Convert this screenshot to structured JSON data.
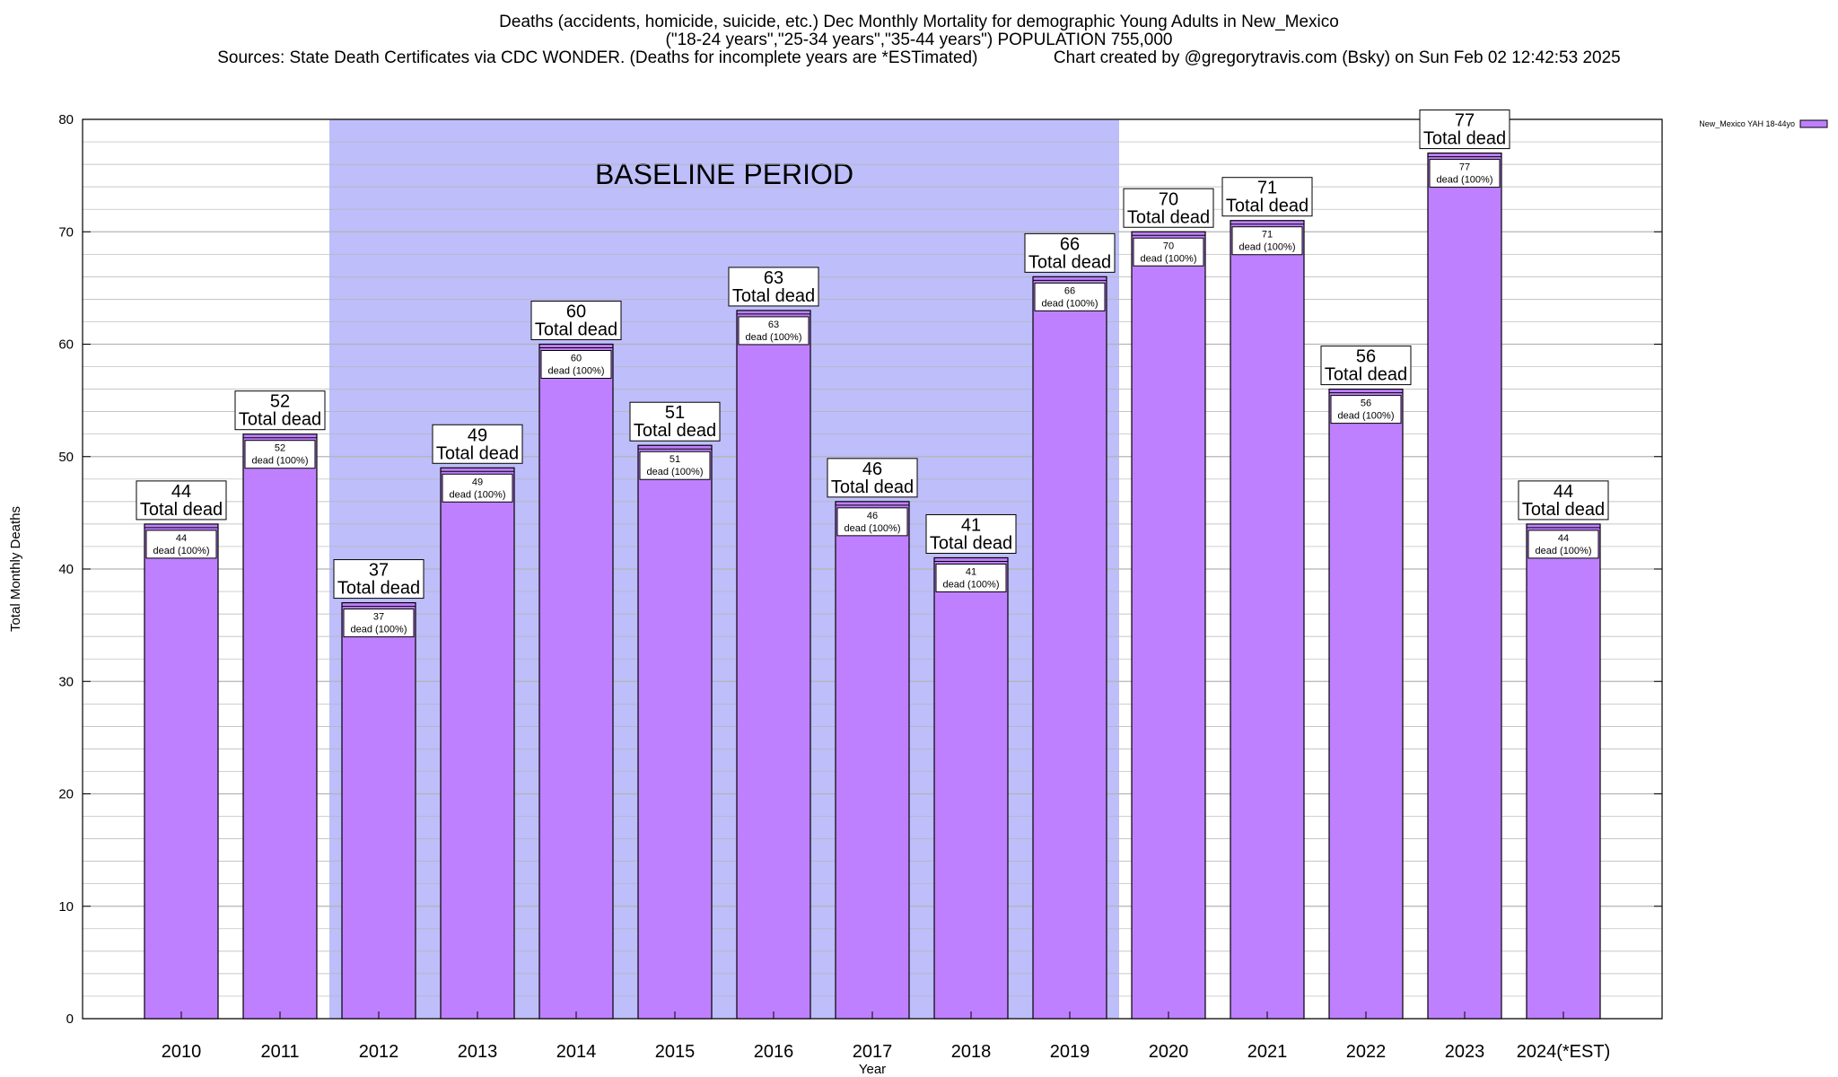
{
  "title": {
    "line1": "Deaths (accidents, homicide, suicide, etc.) Dec Monthly Mortality for demographic Young Adults in New_Mexico",
    "line2": "(\"18-24 years\",\"25-34 years\",\"35-44 years\") POPULATION 755,000",
    "line3": "Sources: State Death Certificates via CDC WONDER. (Deaths for incomplete years are *ESTimated)                Chart created by @gregorytravis.com (Bsky) on Sun Feb 02 12:42:53 2025"
  },
  "colors": {
    "bar": "#bf80ff",
    "baseline": "#bebefa",
    "grid": "#b4b4b4"
  },
  "chart_data": {
    "type": "bar",
    "categories": [
      "2010",
      "2011",
      "2012",
      "2013",
      "2014",
      "2015",
      "2016",
      "2017",
      "2018",
      "2019",
      "2020",
      "2021",
      "2022",
      "2023",
      "2024(*EST)"
    ],
    "series": [
      {
        "name": "New_Mexico YAH 18-44yo",
        "values": [
          44,
          52,
          37,
          49,
          60,
          51,
          63,
          46,
          41,
          66,
          70,
          71,
          56,
          77,
          44
        ]
      }
    ],
    "top_label_suffix": "Total dead",
    "inner_label_suffix": "dead (100%)",
    "xlabel": "Year",
    "ylabel": "Total Monthly Deaths",
    "ylim": [
      0,
      80
    ],
    "yticks": [
      0,
      10,
      20,
      30,
      40,
      50,
      60,
      70,
      80
    ],
    "baseline_period": {
      "label": "BASELINE PERIOD",
      "from": "2012",
      "to": "2019"
    },
    "grid": true,
    "legend_position": "top-right"
  }
}
